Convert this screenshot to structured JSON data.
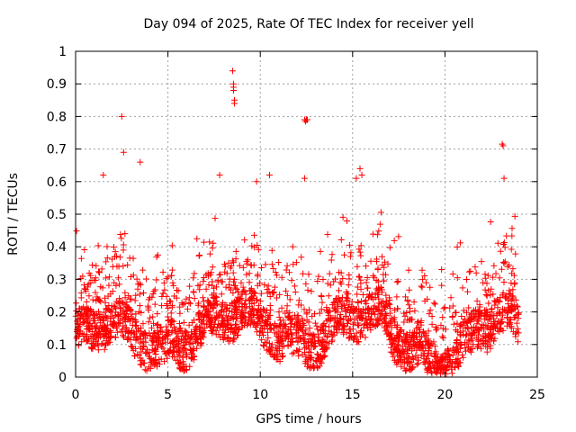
{
  "chart_data": {
    "type": "scatter",
    "title": "Day 094 of 2025, Rate Of TEC Index for receiver yell",
    "xlabel": "GPS time / hours",
    "ylabel": "ROTI / TECUs",
    "xlim": [
      0,
      25
    ],
    "ylim": [
      0,
      1
    ],
    "x_ticks": [
      0,
      5,
      10,
      15,
      20,
      25
    ],
    "x_tick_labels": [
      "0",
      "5",
      "10",
      "15",
      "20",
      "25"
    ],
    "y_ticks": [
      0,
      0.1,
      0.2,
      0.3,
      0.4,
      0.5,
      0.6,
      0.7,
      0.8,
      0.9,
      1
    ],
    "y_tick_labels": [
      "0",
      "0.1",
      "0.2",
      "0.3",
      "0.4",
      "0.5",
      "0.6",
      "0.7",
      "0.8",
      "0.9",
      "1"
    ],
    "grid": true,
    "marker": "+",
    "marker_color": "#ff0000",
    "series_name": "ROTI",
    "data_range_hours": [
      0,
      24
    ],
    "outliers": [
      {
        "x": 2.5,
        "y": 0.8
      },
      {
        "x": 2.6,
        "y": 0.69
      },
      {
        "x": 3.5,
        "y": 0.66
      },
      {
        "x": 8.5,
        "y": 0.94
      },
      {
        "x": 8.55,
        "y": 0.9
      },
      {
        "x": 8.55,
        "y": 0.89
      },
      {
        "x": 8.55,
        "y": 0.88
      },
      {
        "x": 8.6,
        "y": 0.85
      },
      {
        "x": 8.6,
        "y": 0.84
      },
      {
        "x": 12.4,
        "y": 0.79
      },
      {
        "x": 12.45,
        "y": 0.785
      },
      {
        "x": 12.5,
        "y": 0.79
      },
      {
        "x": 12.55,
        "y": 0.79
      },
      {
        "x": 15.4,
        "y": 0.64
      },
      {
        "x": 15.5,
        "y": 0.62
      },
      {
        "x": 23.1,
        "y": 0.715
      },
      {
        "x": 23.15,
        "y": 0.71
      },
      {
        "x": 23.2,
        "y": 0.61
      },
      {
        "x": 7.8,
        "y": 0.62
      },
      {
        "x": 10.5,
        "y": 0.62
      },
      {
        "x": 1.5,
        "y": 0.62
      },
      {
        "x": 12.4,
        "y": 0.61
      },
      {
        "x": 9.8,
        "y": 0.6
      },
      {
        "x": 15.2,
        "y": 0.61
      }
    ]
  }
}
